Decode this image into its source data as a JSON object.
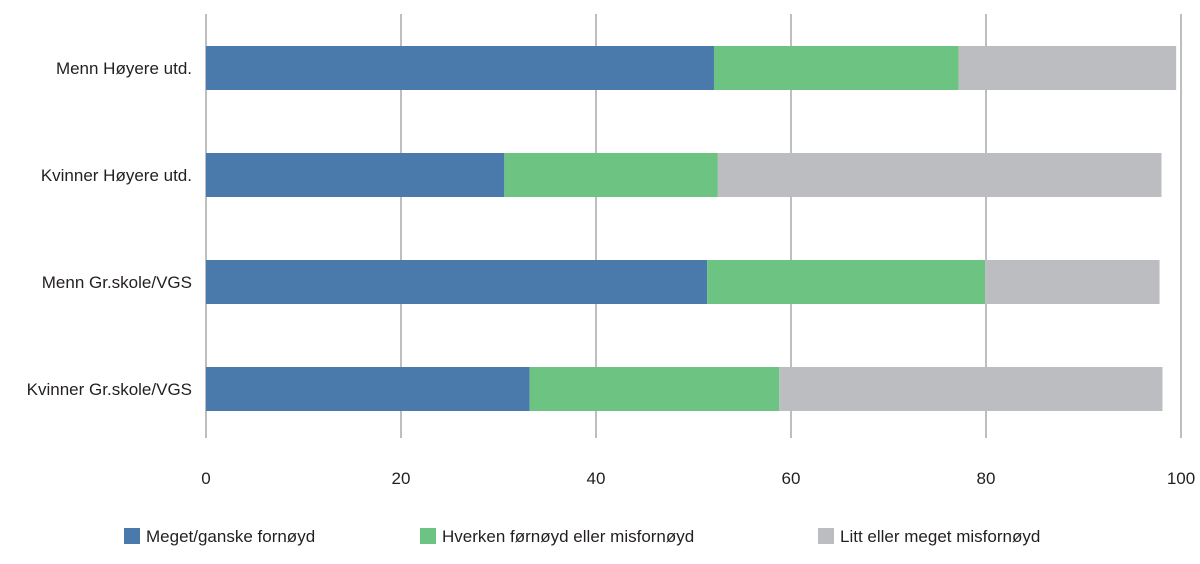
{
  "chart_data": {
    "type": "bar",
    "orientation": "horizontal",
    "stacked": true,
    "title": "",
    "xlabel": "",
    "ylabel": "",
    "xlim": [
      0,
      100
    ],
    "x_ticks": [
      0,
      20,
      40,
      60,
      80,
      100
    ],
    "grid": "vertical",
    "legend_position": "bottom",
    "categories": [
      "Menn Høyere utd.",
      "Kvinner Høyere utd.",
      "Menn Gr.skole/VGS",
      "Kvinner Gr.skole/VGS"
    ],
    "series": [
      {
        "name": "Meget/ganske fornøyd",
        "color": "#4a7aab",
        "values": [
          52.1,
          30.6,
          51.4,
          33.2
        ]
      },
      {
        "name": "Hverken førnøyd eller misfornøyd",
        "color": "#6dc382",
        "values": [
          25.1,
          21.9,
          28.5,
          25.6
        ]
      },
      {
        "name": "Litt eller meget misfornøyd",
        "color": "#bcbdc0",
        "values": [
          22.3,
          45.5,
          17.9,
          39.3
        ]
      }
    ]
  }
}
